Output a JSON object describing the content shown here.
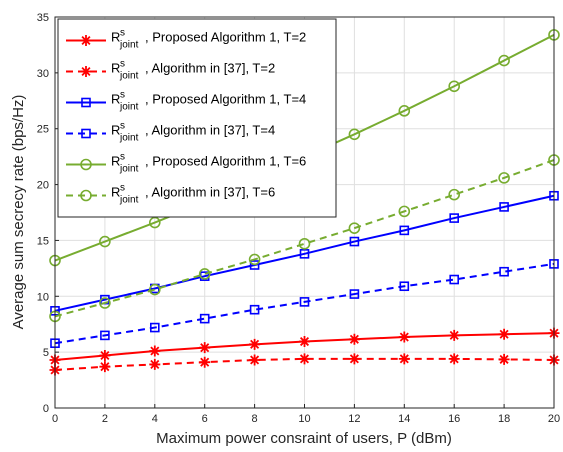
{
  "chart_data": {
    "type": "line",
    "xlabel": "Maximum power consraint of users, P (dBm)",
    "ylabel": "Average sum secrecy rate (bps/Hz)",
    "xlim": [
      0,
      20
    ],
    "ylim": [
      0,
      35
    ],
    "xticks": [
      "0",
      "2",
      "4",
      "6",
      "8",
      "10",
      "12",
      "14",
      "16",
      "18",
      "20"
    ],
    "yticks": [
      "0",
      "5",
      "10",
      "15",
      "20",
      "25",
      "30",
      "35"
    ],
    "grid": true,
    "legend_position": "top-left",
    "x": [
      0,
      2,
      4,
      6,
      8,
      10,
      12,
      14,
      16,
      18,
      20
    ],
    "series": [
      {
        "symbol": "R",
        "sup": "s",
        "sub": "joint",
        "rest": ", Proposed Algorithm 1, T=2",
        "color": "#ff0000",
        "dash": "solid",
        "marker": "star",
        "values": [
          4.3,
          4.7,
          5.1,
          5.4,
          5.7,
          5.95,
          6.15,
          6.35,
          6.5,
          6.6,
          6.7
        ]
      },
      {
        "symbol": "R",
        "sup": "s",
        "sub": "joint",
        "rest": ", Algorithm in [37], T=2",
        "color": "#ff0000",
        "dash": "dashed",
        "marker": "star",
        "values": [
          3.4,
          3.7,
          3.9,
          4.1,
          4.3,
          4.4,
          4.4,
          4.4,
          4.4,
          4.35,
          4.3
        ]
      },
      {
        "symbol": "R",
        "sup": "s",
        "sub": "joint",
        "rest": ", Proposed Algorithm 1, T=4",
        "color": "#0000ff",
        "dash": "solid",
        "marker": "square",
        "values": [
          8.7,
          9.7,
          10.7,
          11.8,
          12.8,
          13.8,
          14.9,
          15.9,
          17.0,
          18.0,
          19.0
        ]
      },
      {
        "symbol": "R",
        "sup": "s",
        "sub": "joint",
        "rest": ", Algorithm in [37], T=4",
        "color": "#0000ff",
        "dash": "dashed",
        "marker": "square",
        "values": [
          5.8,
          6.5,
          7.2,
          8.0,
          8.8,
          9.5,
          10.2,
          10.9,
          11.5,
          12.2,
          12.9
        ]
      },
      {
        "symbol": "R",
        "sup": "s",
        "sub": "joint",
        "rest": ", Proposed Algorithm 1, T=6",
        "color": "#77ac30",
        "dash": "solid",
        "marker": "circle",
        "values": [
          13.2,
          14.9,
          16.6,
          18.4,
          20.5,
          22.5,
          24.5,
          26.6,
          28.8,
          31.1,
          33.4
        ]
      },
      {
        "symbol": "R",
        "sup": "s",
        "sub": "joint",
        "rest": ", Algorithm in [37], T=6",
        "color": "#77ac30",
        "dash": "dashed",
        "marker": "circle",
        "values": [
          8.2,
          9.4,
          10.6,
          12.0,
          13.3,
          14.7,
          16.1,
          17.6,
          19.1,
          20.6,
          22.2
        ]
      }
    ]
  }
}
